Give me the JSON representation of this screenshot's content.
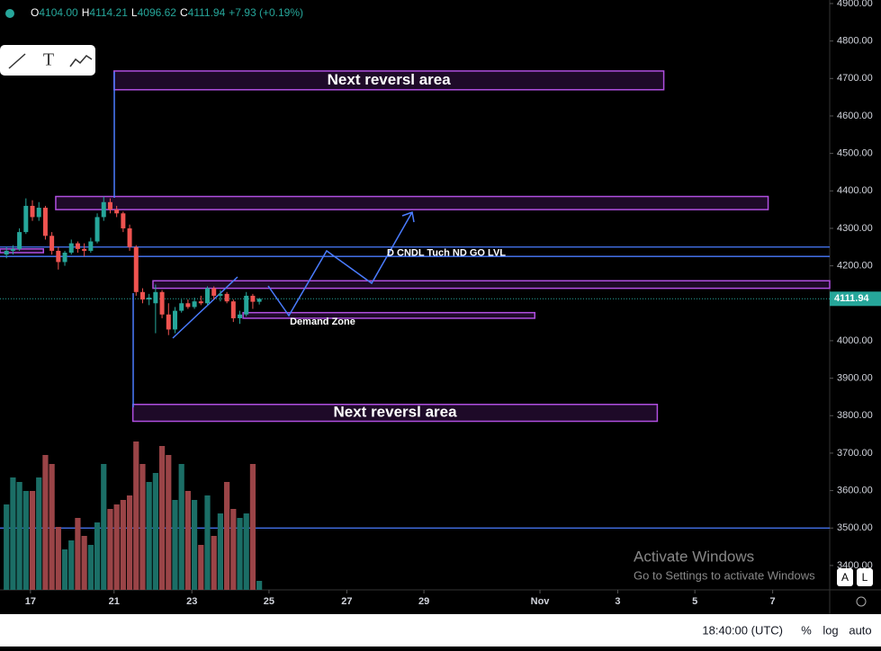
{
  "chart_data": {
    "type": "candlestick",
    "header": {
      "o_label": "O",
      "o": "4104.00",
      "h_label": "H",
      "h": "4114.21",
      "l_label": "L",
      "l": "4096.62",
      "c_label": "C",
      "c": "4111.94",
      "change": "+7.93 (+0.19%)"
    },
    "x": [
      1,
      2,
      3,
      4,
      5,
      6,
      7,
      8,
      9,
      10,
      11,
      12,
      13,
      14,
      15,
      16,
      17,
      18,
      19,
      20,
      21,
      22,
      23,
      24,
      25,
      26,
      27,
      28,
      29,
      30,
      31,
      32,
      33,
      34,
      35,
      36,
      37,
      38,
      39,
      40
    ],
    "ohlc": [
      [
        4230,
        4250,
        4220,
        4240
      ],
      [
        4240,
        4255,
        4230,
        4245
      ],
      [
        4245,
        4300,
        4240,
        4290
      ],
      [
        4290,
        4380,
        4285,
        4360
      ],
      [
        4360,
        4375,
        4320,
        4330
      ],
      [
        4330,
        4370,
        4320,
        4355
      ],
      [
        4355,
        4360,
        4270,
        4280
      ],
      [
        4280,
        4290,
        4230,
        4240
      ],
      [
        4240,
        4250,
        4190,
        4210
      ],
      [
        4210,
        4240,
        4200,
        4235
      ],
      [
        4235,
        4270,
        4230,
        4260
      ],
      [
        4260,
        4265,
        4235,
        4245
      ],
      [
        4245,
        4260,
        4225,
        4240
      ],
      [
        4240,
        4275,
        4235,
        4265
      ],
      [
        4265,
        4340,
        4260,
        4330
      ],
      [
        4330,
        4385,
        4320,
        4370
      ],
      [
        4370,
        4380,
        4340,
        4350
      ],
      [
        4350,
        4360,
        4330,
        4340
      ],
      [
        4340,
        4345,
        4290,
        4300
      ],
      [
        4300,
        4310,
        4240,
        4250
      ],
      [
        4250,
        4255,
        4120,
        4130
      ],
      [
        4130,
        4140,
        4100,
        4110
      ],
      [
        4110,
        4125,
        4095,
        4115
      ],
      [
        4100,
        4150,
        4020,
        4130
      ],
      [
        4130,
        4135,
        4060,
        4070
      ],
      [
        4070,
        4100,
        4015,
        4030
      ],
      [
        4030,
        4090,
        4020,
        4080
      ],
      [
        4080,
        4110,
        4075,
        4100
      ],
      [
        4100,
        4110,
        4085,
        4090
      ],
      [
        4090,
        4115,
        4085,
        4105
      ],
      [
        4105,
        4120,
        4095,
        4100
      ],
      [
        4100,
        4145,
        4095,
        4140
      ],
      [
        4140,
        4145,
        4110,
        4120
      ],
      [
        4120,
        4135,
        4105,
        4125
      ],
      [
        4125,
        4130,
        4100,
        4105
      ],
      [
        4105,
        4110,
        4050,
        4060
      ],
      [
        4060,
        4080,
        4045,
        4070
      ],
      [
        4070,
        4130,
        4065,
        4120
      ],
      [
        4120,
        4125,
        4085,
        4104
      ],
      [
        4104,
        4114.21,
        4096.62,
        4111.94
      ]
    ],
    "volume": [
      95,
      125,
      120,
      110,
      110,
      125,
      150,
      140,
      70,
      45,
      55,
      80,
      60,
      50,
      75,
      140,
      90,
      95,
      100,
      105,
      165,
      140,
      120,
      130,
      160,
      150,
      100,
      140,
      110,
      100,
      50,
      105,
      60,
      85,
      120,
      90,
      80,
      85,
      140,
      10
    ],
    "up_color": "#26a69a",
    "down_color": "#ef5350",
    "xlim": [
      0,
      128
    ],
    "xticks": [
      {
        "value": 4.7,
        "label": "17"
      },
      {
        "value": 17.6,
        "label": "21"
      },
      {
        "value": 29.6,
        "label": "23"
      },
      {
        "value": 41.5,
        "label": "25"
      },
      {
        "value": 53.5,
        "label": "27"
      },
      {
        "value": 65.4,
        "label": "29"
      },
      {
        "value": 83.3,
        "label": "Nov"
      },
      {
        "value": 95.3,
        "label": "3"
      },
      {
        "value": 107.2,
        "label": "5"
      },
      {
        "value": 119.2,
        "label": "7"
      }
    ],
    "ylim": [
      3335,
      4909.5
    ],
    "yticks": [
      {
        "value": 3400,
        "label": "3400.00"
      },
      {
        "value": 3500,
        "label": "3500.00"
      },
      {
        "value": 3600,
        "label": "3600.00"
      },
      {
        "value": 3700,
        "label": "3700.00"
      },
      {
        "value": 3800,
        "label": "3800.00"
      },
      {
        "value": 3900,
        "label": "3900.00"
      },
      {
        "value": 4000,
        "label": "4000.00"
      },
      {
        "value": 4100,
        "label": "4100.00"
      },
      {
        "value": 4200,
        "label": "4200.00"
      },
      {
        "value": 4300,
        "label": "4300.00"
      },
      {
        "value": 4400,
        "label": "4400.00"
      },
      {
        "value": 4500,
        "label": "4500.00"
      },
      {
        "value": 4600,
        "label": "4600.00"
      },
      {
        "value": 4700,
        "label": "4700.00"
      },
      {
        "value": 4800,
        "label": "4800.00"
      },
      {
        "value": 4900,
        "label": "4900.00"
      }
    ],
    "last_price": 4111.94,
    "zones": [
      {
        "label": "Next reversl area",
        "x": [
          17.6,
          102.4
        ],
        "y": [
          4670,
          4720
        ]
      },
      {
        "x": [
          8.6,
          118.5
        ],
        "y": [
          4350,
          4385
        ]
      },
      {
        "x": [
          23.6,
          128
        ],
        "y": [
          4140,
          4160
        ]
      },
      {
        "x": [
          0,
          6.7
        ],
        "y": [
          4235,
          4245
        ]
      },
      {
        "label": "Demand Zone",
        "x": [
          37.5,
          82.5
        ],
        "y": [
          4060,
          4075
        ]
      },
      {
        "label": "Next reversl area",
        "x": [
          20.5,
          101.4
        ],
        "y": [
          3785,
          3830
        ]
      }
    ],
    "levels": [
      4250,
      4225,
      3500
    ],
    "level_note": "D CNDL Tuch ND GO LVL"
  },
  "watermark": {
    "title": "Activate Windows",
    "subtitle": "Go to Settings to activate Windows"
  },
  "buttons": [
    "A",
    "L"
  ],
  "status_bar": {
    "time": "18:40:00 (UTC)",
    "percent": "%",
    "log": "log",
    "auto": "auto"
  }
}
